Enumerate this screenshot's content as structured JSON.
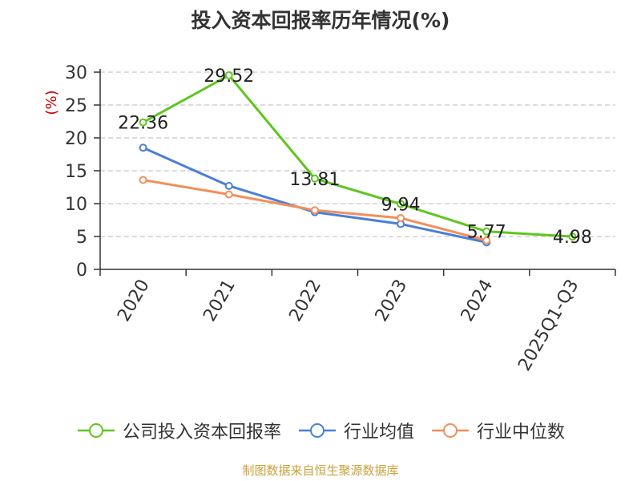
{
  "title": "投入资本回报率历年情况(%)",
  "source_note": "制图数据来自恒生聚源数据库",
  "colors": {
    "company": "#5ec61f",
    "industry_mean": "#4a7fd9",
    "industry_median": "#f28f5c",
    "ylabel": "#cc0000",
    "grid": "#c8c8c8",
    "axis": "#333333",
    "source": "#c9a13a"
  },
  "chart_data": {
    "type": "line",
    "title": "投入资本回报率历年情况(%)",
    "ylabel": "(%)",
    "xlabel": "",
    "categories": [
      "2020",
      "2021",
      "2022",
      "2023",
      "2024",
      "2025Q1-Q3"
    ],
    "ylim": [
      0,
      30
    ],
    "yticks": [
      0,
      5,
      10,
      15,
      20,
      25,
      30
    ],
    "grid": true,
    "legend_position": "bottom",
    "series": [
      {
        "name": "公司投入资本回报率",
        "key": "company",
        "values": [
          22.36,
          29.52,
          13.81,
          9.94,
          5.77,
          4.98
        ],
        "labels": [
          "22.36",
          "29.52",
          "13.81",
          "9.94",
          "5.77",
          "4.98"
        ]
      },
      {
        "name": "行业均值",
        "key": "industry_mean",
        "values": [
          18.5,
          12.7,
          8.7,
          6.9,
          4.1,
          null
        ],
        "labels": []
      },
      {
        "name": "行业中位数",
        "key": "industry_median",
        "values": [
          13.6,
          11.4,
          9.0,
          7.8,
          4.4,
          null
        ],
        "labels": []
      }
    ]
  }
}
